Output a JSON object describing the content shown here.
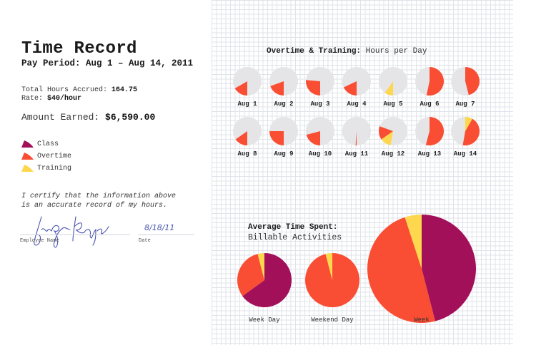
{
  "header": {
    "title": "Time Record",
    "pay_period": "Pay Period: Aug 1 – Aug 14, 2011"
  },
  "summary": {
    "total_hours_label": "Total Hours Accrued:",
    "total_hours_value": "164.75",
    "rate_label": "Rate:",
    "rate_value": "$40/hour",
    "amount_label": "Amount Earned:",
    "amount_value": "$6,590.00"
  },
  "colors": {
    "class": "#A3105A",
    "overtime": "#F94E33",
    "training": "#FDD84E",
    "pie_background": "#E5E5E7"
  },
  "legend": [
    {
      "key": "class",
      "label": "Class"
    },
    {
      "key": "overtime",
      "label": "Overtime"
    },
    {
      "key": "training",
      "label": "Training"
    }
  ],
  "certification": {
    "line1": "I certify that the information above",
    "line2": "is an accurate record of my hours.",
    "employee_name_label": "Employee Name",
    "date_label": "Date",
    "date_value": "8/18/11"
  },
  "daily_chart": {
    "title_bold": "Overtime & Training:",
    "title_rest": " Hours per Day"
  },
  "summary_chart": {
    "title_bold": "Average Time Spent:",
    "subtitle": "Billable Activities"
  },
  "chart_data": [
    {
      "type": "pie",
      "title": "Overtime & Training: Hours per Day",
      "note": "Slices given as start/end angles in degrees clockwise from 12 o'clock on a 24-hour day circle",
      "days": [
        {
          "label": "Aug 1",
          "slices": [
            {
              "series": "overtime",
              "start": 180,
              "end": 240
            }
          ]
        },
        {
          "label": "Aug 2",
          "slices": [
            {
              "series": "overtime",
              "start": 180,
              "end": 250
            }
          ]
        },
        {
          "label": "Aug 3",
          "slices": [
            {
              "series": "overtime",
              "start": 180,
              "end": 275
            }
          ]
        },
        {
          "label": "Aug 4",
          "slices": [
            {
              "series": "overtime",
              "start": 180,
              "end": 245
            }
          ]
        },
        {
          "label": "Aug 5",
          "slices": [
            {
              "series": "training",
              "start": 180,
              "end": 215
            }
          ]
        },
        {
          "label": "Aug 6",
          "slices": [
            {
              "series": "overtime",
              "start": 0,
              "end": 192
            }
          ]
        },
        {
          "label": "Aug 7",
          "slices": [
            {
              "series": "overtime",
              "start": 0,
              "end": 166
            }
          ]
        },
        {
          "label": "Aug 8",
          "slices": [
            {
              "series": "overtime",
              "start": 180,
              "end": 235
            }
          ]
        },
        {
          "label": "Aug 9",
          "slices": [
            {
              "series": "overtime",
              "start": 180,
              "end": 270
            }
          ]
        },
        {
          "label": "Aug 10",
          "slices": [
            {
              "series": "overtime",
              "start": 180,
              "end": 255
            }
          ]
        },
        {
          "label": "Aug 11",
          "slices": [
            {
              "series": "overtime",
              "start": 180,
              "end": 184
            }
          ]
        },
        {
          "label": "Aug 12",
          "slices": [
            {
              "series": "training",
              "start": 190,
              "end": 235
            },
            {
              "series": "overtime",
              "start": 235,
              "end": 290
            }
          ]
        },
        {
          "label": "Aug 13",
          "slices": [
            {
              "series": "overtime",
              "start": 0,
              "end": 195
            }
          ]
        },
        {
          "label": "Aug 14",
          "slices": [
            {
              "series": "training",
              "start": 0,
              "end": 30
            },
            {
              "series": "overtime",
              "start": 30,
              "end": 190
            }
          ]
        }
      ]
    },
    {
      "type": "pie",
      "title": "Average Time Spent: Billable Activities",
      "legend": [
        "Class",
        "Overtime",
        "Training"
      ],
      "pies": [
        {
          "label": "Week Day",
          "values": {
            "class": 65,
            "overtime": 31,
            "training": 4
          }
        },
        {
          "label": "Weekend Day",
          "values": {
            "class": 0,
            "overtime": 96,
            "training": 4
          }
        },
        {
          "label": "Week",
          "values": {
            "class": 46,
            "overtime": 49,
            "training": 5
          }
        }
      ]
    }
  ]
}
